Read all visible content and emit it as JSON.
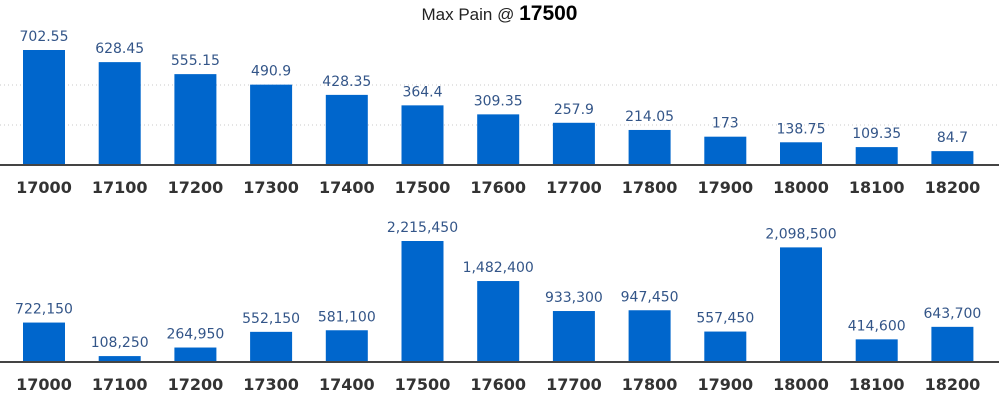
{
  "title": {
    "prefix": "Max Pain @",
    "value": "17500"
  },
  "chart_data": [
    {
      "type": "bar",
      "categories": [
        "17000",
        "17100",
        "17200",
        "17300",
        "17400",
        "17500",
        "17600",
        "17700",
        "17800",
        "17900",
        "18000",
        "18100",
        "18200"
      ],
      "values": [
        702.55,
        628.45,
        555.15,
        490.9,
        428.35,
        364.4,
        309.35,
        257.9,
        214.05,
        173,
        138.75,
        109.35,
        84.7
      ],
      "labels": [
        "702.55",
        "628.45",
        "555.15",
        "490.9",
        "428.35",
        "364.4",
        "309.35",
        "257.9",
        "214.05",
        "173",
        "138.75",
        "109.35",
        "84.7"
      ],
      "grid": true
    },
    {
      "type": "bar",
      "categories": [
        "17000",
        "17100",
        "17200",
        "17300",
        "17400",
        "17500",
        "17600",
        "17700",
        "17800",
        "17900",
        "18000",
        "18100",
        "18200"
      ],
      "values": [
        722150,
        108250,
        264950,
        552150,
        581100,
        2215450,
        1482400,
        933300,
        947450,
        557450,
        2098500,
        414600,
        643700
      ],
      "labels": [
        "722,150",
        "108,250",
        "264,950",
        "552,150",
        "581,100",
        "2,215,450",
        "1,482,400",
        "933,300",
        "947,450",
        "557,450",
        "2,098,500",
        "414,600",
        "643,700"
      ],
      "grid": false
    }
  ],
  "colors": {
    "bar": "#0066cc",
    "label": "#335588",
    "axis": "#444444"
  }
}
